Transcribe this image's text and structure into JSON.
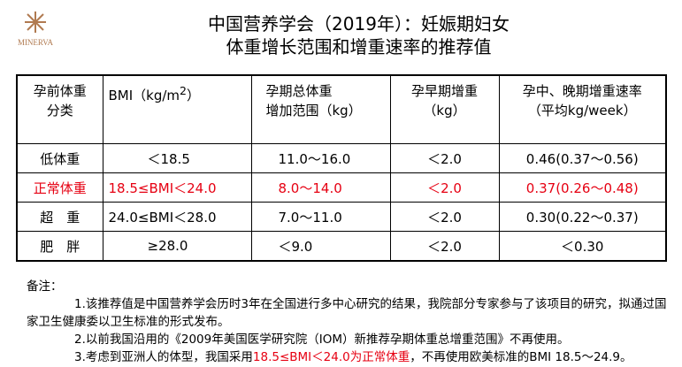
{
  "logo": {
    "name": "MINERVA"
  },
  "header": {
    "title_lines": [
      "中国营养学会（2019年）：妊娠期妇女",
      "体重增长范围和增重速率的推荐值"
    ]
  },
  "table": {
    "headers": [
      {
        "lines": [
          "孕前体重",
          "分类"
        ]
      },
      {
        "text": "BMI（kg/m",
        "sup": "2",
        "tail": "）"
      },
      {
        "lines": [
          "孕期总体重",
          "增加范围（kg）"
        ]
      },
      {
        "lines": [
          "孕早期增重",
          "（kg）"
        ]
      },
      {
        "lines": [
          "孕中、晚期增重速率",
          "（平均kg/week）"
        ]
      }
    ],
    "rows": [
      [
        "低体重",
        "＜18.5",
        "11.0～16.0",
        "＜2.0",
        "0.46(0.37～0.56)"
      ],
      [
        "正常体重",
        "18.5≤BMI＜24.0",
        "8.0～14.0",
        "＜2.0",
        "0.37(0.26～0.48)"
      ],
      [
        "超　重",
        "24.0≤BMI＜28.0",
        "7.0～11.0",
        "＜2.0",
        "0.30(0.22～0.37)"
      ],
      [
        "肥　胖",
        "≥28.0",
        "＜9.0",
        "＜2.0",
        "＜0.30"
      ]
    ],
    "highlight_row": 1
  },
  "notes": {
    "label": "备注：",
    "items": [
      "1.该推荐值是中国营养学会历时3年在全国进行多中心研究的结果，我院部分专家参与了该项目的研究，拟通过国家卫生健康委以卫生标准的形式发布。",
      "2.以前我国沿用的《2009年美国医学研究院（IOM）新推荐孕期体重总增重范围》不再使用。"
    ],
    "item3": {
      "before": "3.考虑到亚洲人的体型，我国采用",
      "red": "18.5≤BMI＜24.0为正常体重",
      "after": "，不再使用欧美标准的BMI 18.5～24.9。"
    }
  }
}
